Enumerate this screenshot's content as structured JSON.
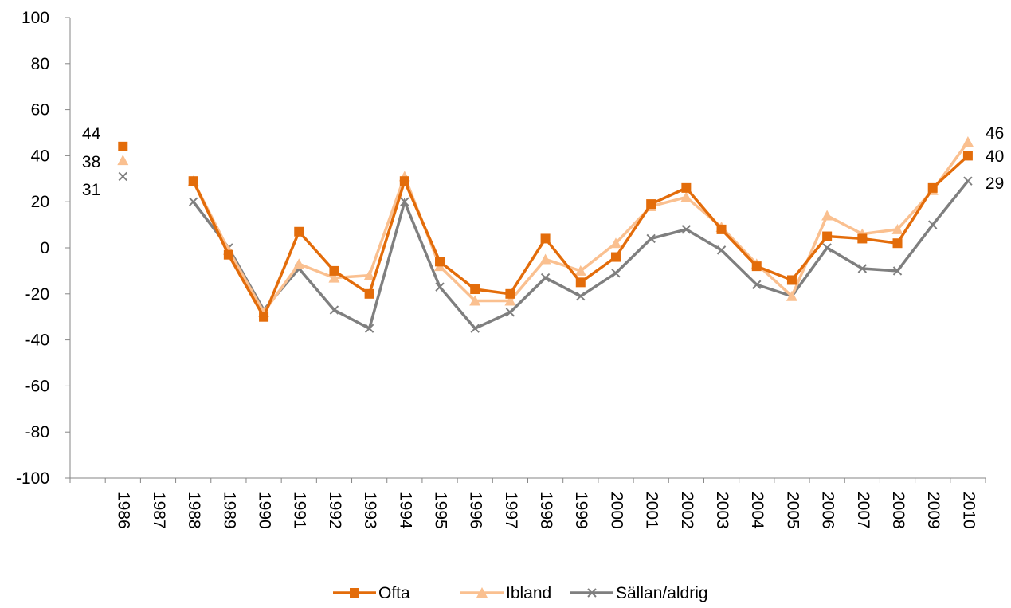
{
  "chart_data": {
    "type": "line",
    "categories": [
      null,
      "1986",
      "1987",
      "1988",
      "1989",
      "1990",
      "1991",
      "1992",
      "1993",
      "1994",
      "1995",
      "1996",
      "1997",
      "1998",
      "1999",
      "2000",
      "2001",
      "2002",
      "2003",
      "2004",
      "2005",
      "2006",
      "2007",
      "2008",
      "2009",
      "2010"
    ],
    "series": [
      {
        "name": "Ofta",
        "color": "#e36c0a",
        "marker": "square",
        "values": [
          null,
          44,
          null,
          29,
          -3,
          -30,
          7,
          -10,
          -20,
          29,
          -6,
          -18,
          -20,
          4,
          -15,
          -4,
          19,
          26,
          8,
          -8,
          -14,
          5,
          4,
          2,
          26,
          40
        ]
      },
      {
        "name": "Ibland",
        "color": "#fac090",
        "marker": "triangle",
        "values": [
          null,
          38,
          null,
          29,
          -1,
          -28,
          -7,
          -13,
          -12,
          31,
          -8,
          -23,
          -23,
          -5,
          -10,
          2,
          18,
          22,
          9,
          -7,
          -21,
          14,
          6,
          8,
          25,
          46
        ]
      },
      {
        "name": "Sällan/aldrig",
        "color": "#7f7f7f",
        "marker": "x",
        "values": [
          null,
          31,
          null,
          20,
          0,
          -27,
          -9,
          -27,
          -35,
          20,
          -17,
          -35,
          -28,
          -13,
          -21,
          -11,
          4,
          8,
          -1,
          -16,
          -21,
          0,
          -9,
          -10,
          10,
          29
        ]
      }
    ],
    "ylim": [
      -100,
      100
    ],
    "yticks": [
      -100,
      -80,
      -60,
      -40,
      -20,
      0,
      20,
      40,
      60,
      80,
      100
    ],
    "grid": false,
    "legend": "bottom"
  }
}
